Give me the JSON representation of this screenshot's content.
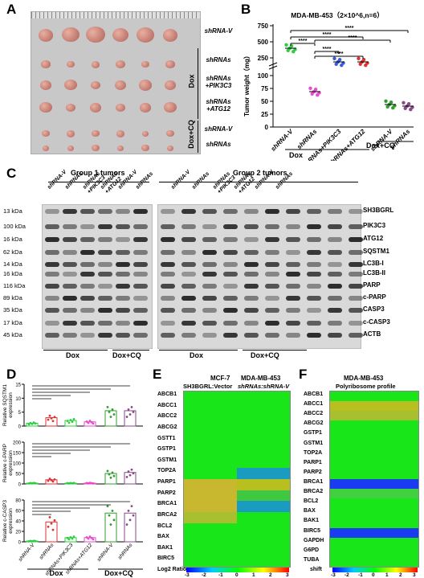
{
  "panels": {
    "A": "A",
    "B": "B",
    "C": "C",
    "D": "D",
    "E": "E",
    "F": "F"
  },
  "panelA": {
    "rows": [
      "shRNA-V",
      "shRNAs",
      "shRNAs\n+PIK3C3",
      "shRNAs\n+ATG12",
      "shRNA-V",
      "shRNAs"
    ],
    "group_labels": [
      "Dox",
      "Dox+CQ"
    ]
  },
  "panelB": {
    "title": "MDA-MB-453（2×10^6,n=6）",
    "ylabel": "Tumor weight（mg）",
    "yticks_top": [
      "750",
      "500",
      "250"
    ],
    "yticks_bottom": [
      "100",
      "75",
      "50",
      "25",
      "0"
    ],
    "xlabels": [
      "shRNA-V",
      "shRNAs",
      "shRNAs+PIK3C3",
      "shRNAs+ATG12",
      "shRNA-V",
      "shRNAs"
    ],
    "groups": [
      "Dox",
      "Dox+CQ"
    ],
    "sig": "****"
  },
  "panelC": {
    "group1": "Group 1 tumors",
    "group2": "Group 2 tumors",
    "lanes": [
      "shRNA-V",
      "shRNAs",
      "shRNAs\n+PIK3C3",
      "shRNAs\n+ATG12",
      "shRNA-V",
      "shRNAs"
    ],
    "kda": [
      "13 kDa",
      "100 kDa",
      "16 kDa",
      "62 kDa",
      "14 kDa",
      "16 kDa",
      "116 kDa",
      "89 kDa",
      "35 kDa",
      "17 kDa",
      "45 kDa"
    ],
    "proteins": [
      "SH3BGRL",
      "PIK3C3",
      "ATG12",
      "SQSTM1",
      "LC3B-I",
      "LC3B-II",
      "PARP",
      "c-PARP",
      "CASP3",
      "c-CASP3",
      "ACTB"
    ],
    "bottom": [
      "Dox",
      "Dox+CQ",
      "Dox",
      "Dox+CQ"
    ]
  },
  "panelD": {
    "ylabels": [
      "Relative SQSTM1\nexpression",
      "Relative c-PARP\nexpression",
      "Relative c-CASP3\nexpression"
    ],
    "yticks_1": [
      "15",
      "10",
      "5",
      "0"
    ],
    "yticks_2": [
      "200",
      "150",
      "100",
      "50",
      "0"
    ],
    "yticks_3": [
      "80",
      "60",
      "40",
      "20",
      "0"
    ],
    "xlabels": [
      "shRNA-V",
      "shRNAs",
      "shRNAs+PIK3C3",
      "shRNAs+ATG12",
      "shRNA-V",
      "shRNAs"
    ],
    "groups": [
      "Dox",
      "Dox+CQ"
    ],
    "chart_data": [
      {
        "type": "bar",
        "categories": [
          "shRNA-V",
          "shRNAs",
          "shRNAs+PIK3C3",
          "shRNAs+ATG12",
          "shRNA-V",
          "shRNAs"
        ],
        "values": [
          1,
          3,
          2,
          1.5,
          5.5,
          5.5
        ],
        "ylim": [
          0,
          15
        ]
      },
      {
        "type": "bar",
        "categories": [
          "shRNA-V",
          "shRNAs",
          "shRNAs+PIK3C3",
          "shRNAs+ATG12",
          "shRNA-V",
          "shRNAs"
        ],
        "values": [
          1,
          20,
          3,
          4,
          50,
          55
        ],
        "ylim": [
          0,
          200
        ]
      },
      {
        "type": "bar",
        "categories": [
          "shRNA-V",
          "shRNAs",
          "shRNAs+PIK3C3",
          "shRNAs+ATG12",
          "shRNA-V",
          "shRNAs"
        ],
        "values": [
          1,
          38,
          8,
          8,
          55,
          55
        ],
        "ylim": [
          0,
          80
        ]
      }
    ]
  },
  "panelE": {
    "header1": "MCF-7",
    "header1b": "SH3BGRL:Vector",
    "header2": "MDA-MB-453",
    "header2b": "shRNAs:shRNA-V",
    "genes": [
      "ABCB1",
      "ABCC1",
      "ABCC2",
      "ABCG2",
      "GSTT1",
      "GSTP1",
      "GSTM1",
      "TOP2A",
      "PARP1",
      "PARP2",
      "BRCA1",
      "BRCA2",
      "BCL2",
      "BAX",
      "BAK1",
      "BIRC5"
    ],
    "scale_ticks": [
      "-3",
      "-2",
      "-1",
      "0",
      "1",
      "2",
      "3"
    ],
    "scale_label": "Log2 Ratio"
  },
  "panelF": {
    "header1": "MDA-MB-453",
    "header2": "Polyribosome profile",
    "genes": [
      "ABCB1",
      "ABCC1",
      "ABCC2",
      "ABCG2",
      "GSTP1",
      "GSTM1",
      "TOP2A",
      "PARP1",
      "PARP2",
      "BRCA1",
      "BRCA2",
      "BCL2",
      "BAX",
      "BAK1",
      "BIRC5",
      "GAPDH",
      "G6PD",
      "TUBA"
    ],
    "scale_ticks": [
      "-3",
      "-2",
      "-1",
      "0",
      "1",
      "2",
      "3"
    ],
    "scale_label": "shift"
  }
}
